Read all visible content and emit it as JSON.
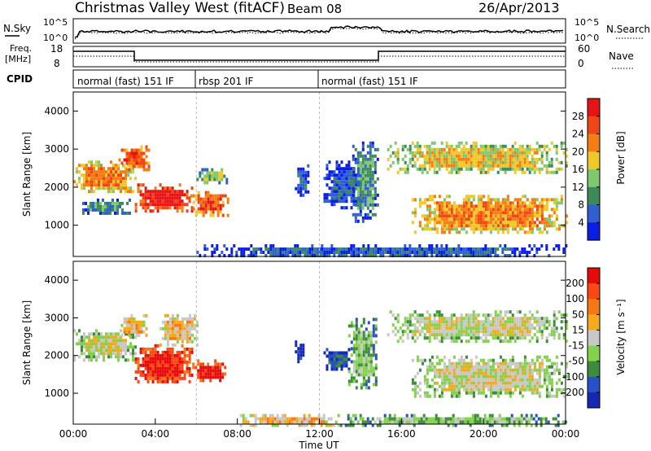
{
  "header": {
    "title": "Christmas Valley West (fitACF)",
    "beam": "Beam 08",
    "date": "26/Apr/2013"
  },
  "noise_panel": {
    "left_label": "N.Sky",
    "right_label": "N.Search",
    "left_ticks": [
      "10^5",
      "10^0"
    ],
    "right_ticks": [
      "10^5",
      "10^0"
    ]
  },
  "freq_panel": {
    "left_label_1": "Freq.",
    "left_label_2": "[MHz]",
    "right_label": "Nave",
    "left_ticks": [
      "18",
      "8"
    ],
    "right_ticks": [
      "60",
      "0"
    ]
  },
  "cpid_panel": {
    "label": "CPID",
    "segments": [
      {
        "label": "normal (fast) 151 IF",
        "start_hour": 0,
        "end_hour": 6
      },
      {
        "label": "rbsp 201 IF",
        "start_hour": 6,
        "end_hour": 12
      },
      {
        "label": "normal (fast) 151 IF",
        "start_hour": 12,
        "end_hour": 24
      }
    ]
  },
  "chart_data": [
    {
      "type": "heatmap",
      "name": "power-panel",
      "ylabel": "Slant Range [km]",
      "x_range_hours": [
        0,
        24
      ],
      "ylim": [
        180,
        4500
      ],
      "y_ticks": [
        1000,
        2000,
        3000,
        4000
      ],
      "colorbar": {
        "label": "Power [dB]",
        "ticks": [
          "4",
          "8",
          "12",
          "16",
          "20",
          "24",
          "28"
        ],
        "colors": [
          "#0a1ee6",
          "#2f5fd2",
          "#3c8a5a",
          "#7fc86e",
          "#f0c828",
          "#f57d14",
          "#f04614",
          "#e61414"
        ]
      },
      "regions": [
        {
          "t0": 0.0,
          "t1": 3.0,
          "r0": 1900,
          "r1": 2700,
          "level": 5
        },
        {
          "t0": 0.2,
          "t1": 2.8,
          "r0": 1300,
          "r1": 1700,
          "level": 2
        },
        {
          "t0": 2.2,
          "t1": 3.7,
          "r0": 2500,
          "r1": 3100,
          "level": 6
        },
        {
          "t0": 3.0,
          "t1": 5.8,
          "r0": 1400,
          "r1": 2100,
          "level": 7
        },
        {
          "t0": 5.7,
          "t1": 7.5,
          "r0": 1300,
          "r1": 1900,
          "level": 6
        },
        {
          "t0": 6.0,
          "t1": 7.5,
          "r0": 2100,
          "r1": 2500,
          "level": 3
        },
        {
          "t0": 10.8,
          "t1": 11.4,
          "r0": 1800,
          "r1": 2600,
          "level": 1
        },
        {
          "t0": 12.2,
          "t1": 14.0,
          "r0": 1500,
          "r1": 2700,
          "level": 1
        },
        {
          "t0": 13.6,
          "t1": 14.8,
          "r0": 1100,
          "r1": 3200,
          "level": 2
        },
        {
          "t0": 15.3,
          "t1": 24.0,
          "r0": 2400,
          "r1": 3200,
          "level": 4
        },
        {
          "t0": 16.5,
          "t1": 24.0,
          "r0": 800,
          "r1": 1800,
          "level": 5
        },
        {
          "t0": 6.0,
          "t1": 24.0,
          "r0": 180,
          "r1": 500,
          "level": 1
        }
      ]
    },
    {
      "type": "heatmap",
      "name": "velocity-panel",
      "ylabel": "Slant Range [km]",
      "xlabel": "Time UT",
      "x_ticks": [
        "00:00",
        "04:00",
        "08:00",
        "12:00",
        "16:00",
        "20:00",
        "00:00"
      ],
      "x_range_hours": [
        0,
        24
      ],
      "ylim": [
        180,
        4500
      ],
      "y_ticks": [
        1000,
        2000,
        3000,
        4000
      ],
      "colorbar": {
        "label": "Velocity [m s⁻¹]",
        "ticks": [
          "200",
          "100",
          "50",
          "15",
          "-15",
          "-50",
          "-100",
          "-200"
        ],
        "colors": [
          "#1428b4",
          "#2850c8",
          "#3c8c3c",
          "#82d24b",
          "#c8c8c8",
          "#f5aa1e",
          "#f57814",
          "#ff4614",
          "#e60a0a"
        ]
      },
      "regions": [
        {
          "t0": 0.0,
          "t1": 3.0,
          "r0": 1900,
          "r1": 2700,
          "level": 4
        },
        {
          "t0": 2.2,
          "t1": 3.6,
          "r0": 2500,
          "r1": 3100,
          "level": 5
        },
        {
          "t0": 3.0,
          "t1": 5.8,
          "r0": 1300,
          "r1": 2300,
          "level": 8
        },
        {
          "t0": 4.2,
          "t1": 6.0,
          "r0": 2300,
          "r1": 3100,
          "level": 5
        },
        {
          "t0": 5.8,
          "t1": 7.5,
          "r0": 1300,
          "r1": 1900,
          "level": 8
        },
        {
          "t0": 10.8,
          "t1": 11.2,
          "r0": 1800,
          "r1": 2400,
          "level": 0
        },
        {
          "t0": 12.2,
          "t1": 13.5,
          "r0": 1600,
          "r1": 2200,
          "level": 1
        },
        {
          "t0": 13.4,
          "t1": 14.8,
          "r0": 1100,
          "r1": 3000,
          "level": 3
        },
        {
          "t0": 15.3,
          "t1": 24.0,
          "r0": 2400,
          "r1": 3200,
          "level": 4
        },
        {
          "t0": 16.5,
          "t1": 24.0,
          "r0": 900,
          "r1": 2000,
          "level": 4
        },
        {
          "t0": 8.0,
          "t1": 13.0,
          "r0": 180,
          "r1": 450,
          "level": 5
        },
        {
          "t0": 13.0,
          "t1": 24.0,
          "r0": 180,
          "r1": 450,
          "level": 3
        }
      ]
    }
  ]
}
